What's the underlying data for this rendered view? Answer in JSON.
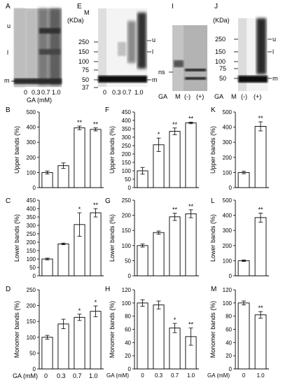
{
  "panel_labels": {
    "A": "A",
    "B": "B",
    "C": "C",
    "D": "D",
    "E": "E",
    "F": "F",
    "G": "G",
    "H": "H",
    "I": "I",
    "J": "J",
    "K": "K",
    "L": "L",
    "M": "M"
  },
  "blots": {
    "kda_label": "(KDa)",
    "marker_lane_label": "M",
    "ga_axis_label": "GA (mM)",
    "ga_label": "GA",
    "marker_sizes": [
      "250",
      "150",
      "100",
      "75",
      "50",
      "37"
    ],
    "marker_sizes_ij": [
      "250",
      "150",
      "100",
      "75",
      "50"
    ],
    "band_u": "u",
    "band_l": "l",
    "band_m": "m",
    "band_ns": "ns",
    "conc_labels": [
      "0",
      "0.3",
      "0.7",
      "1.0"
    ],
    "ij_lanes": [
      "M",
      "(-)",
      "(+)"
    ]
  },
  "chart_data": [
    {
      "id": "B",
      "type": "bar",
      "ylabel": "Upper bands (%)",
      "ylim": [
        0,
        500
      ],
      "yticks": [
        0,
        100,
        200,
        300,
        400,
        500
      ],
      "categories": [
        "0",
        "0.3",
        "0.7",
        "1.0"
      ],
      "values": [
        100,
        145,
        395,
        385
      ],
      "errors": [
        10,
        18,
        12,
        10
      ],
      "sig": [
        "",
        "",
        "**",
        "**"
      ]
    },
    {
      "id": "C",
      "type": "bar",
      "ylabel": "Lower bands (%)",
      "ylim": [
        0,
        450
      ],
      "yticks": [
        0,
        50,
        100,
        150,
        200,
        250,
        300,
        350,
        400,
        450
      ],
      "categories": [
        "0",
        "0.3",
        "0.7",
        "1.0"
      ],
      "values": [
        100,
        190,
        305,
        375
      ],
      "errors": [
        5,
        5,
        70,
        25
      ],
      "sig": [
        "",
        "",
        "*",
        "**"
      ]
    },
    {
      "id": "D",
      "type": "bar",
      "ylabel": "Monomer bands (%)",
      "ylim": [
        0,
        250
      ],
      "yticks": [
        0,
        50,
        100,
        150,
        200,
        250
      ],
      "categories": [
        "0",
        "0.3",
        "0.7",
        "1.0"
      ],
      "values": [
        100,
        142,
        163,
        182
      ],
      "errors": [
        6,
        15,
        10,
        17
      ],
      "sig": [
        "",
        "",
        "*",
        "*"
      ]
    },
    {
      "id": "F",
      "type": "bar",
      "ylabel": "Upper bands (%)",
      "ylim": [
        0,
        450
      ],
      "yticks": [
        0,
        50,
        100,
        150,
        200,
        250,
        300,
        350,
        400,
        450
      ],
      "categories": [
        "0",
        "0.3",
        "0.7",
        "1.0"
      ],
      "values": [
        100,
        255,
        335,
        385
      ],
      "errors": [
        20,
        40,
        20,
        5
      ],
      "sig": [
        "",
        "*",
        "**",
        "**"
      ]
    },
    {
      "id": "G",
      "type": "bar",
      "ylabel": "Lower bands (%)",
      "ylim": [
        0,
        250
      ],
      "yticks": [
        0,
        50,
        100,
        150,
        200,
        250
      ],
      "categories": [
        "0",
        "0.3",
        "0.7",
        "1.0"
      ],
      "values": [
        100,
        143,
        195,
        205
      ],
      "errors": [
        5,
        5,
        12,
        13
      ],
      "sig": [
        "",
        "",
        "**",
        "**"
      ]
    },
    {
      "id": "H",
      "type": "bar",
      "ylabel": "Monomer bands (%)",
      "ylim": [
        0,
        120
      ],
      "yticks": [
        0,
        20,
        40,
        60,
        80,
        100,
        120
      ],
      "xlabel": "GA (mM)",
      "categories": [
        "0",
        "0.3",
        "0.7",
        "1.0"
      ],
      "values": [
        100,
        97,
        62,
        49
      ],
      "errors": [
        5,
        6,
        7,
        13
      ],
      "sig": [
        "",
        "",
        "*",
        "**"
      ]
    },
    {
      "id": "K",
      "type": "bar",
      "ylabel": "Upper bands (%)",
      "ylim": [
        0,
        500
      ],
      "yticks": [
        0,
        100,
        200,
        300,
        400,
        500
      ],
      "categories": [
        "",
        ""
      ],
      "values": [
        100,
        405
      ],
      "errors": [
        8,
        30
      ],
      "sig": [
        "",
        "**"
      ]
    },
    {
      "id": "L",
      "type": "bar",
      "ylabel": "Lower bands (%)",
      "ylim": [
        0,
        500
      ],
      "yticks": [
        0,
        100,
        200,
        300,
        400,
        500
      ],
      "categories": [
        "",
        ""
      ],
      "values": [
        100,
        385
      ],
      "errors": [
        5,
        30
      ],
      "sig": [
        "",
        "**"
      ]
    },
    {
      "id": "M",
      "type": "bar",
      "ylabel": "Monomer bands (%)",
      "ylim": [
        0,
        120
      ],
      "yticks": [
        0,
        20,
        40,
        60,
        80,
        100,
        120
      ],
      "xlabel": "GA (mM)",
      "categories": [
        "0",
        "1.0"
      ],
      "values": [
        100,
        82
      ],
      "errors": [
        3,
        5
      ],
      "sig": [
        "",
        "**"
      ]
    }
  ],
  "bottom_axis": {
    "label": "GA (mM)",
    "categories": [
      "0",
      "0.3",
      "0.7",
      "1.0"
    ]
  }
}
